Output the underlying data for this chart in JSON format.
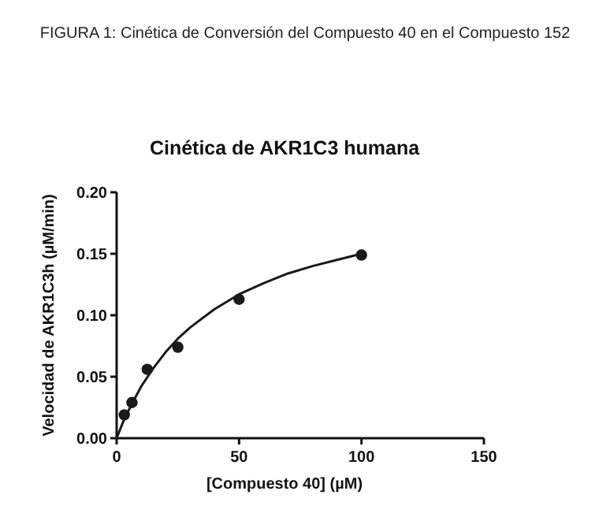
{
  "chart_data": {
    "type": "scatter",
    "title": "Cinética de AKR1C3 humana",
    "subtitle": "FIGURA 1: Cinética de Conversión del Compuesto 40 en el Compuesto 152",
    "xlabel": "[Compuesto 40] (µM)",
    "ylabel": "Velocidad de AKR1C3h  (µM/min)",
    "xlim": [
      0,
      150
    ],
    "xticks": [
      0,
      50,
      100,
      150
    ],
    "ylim": [
      0,
      0.2
    ],
    "yticks": [
      {
        "value": 0,
        "label": "0.00"
      },
      {
        "value": 0.05,
        "label": "0.05"
      },
      {
        "value": 0.1,
        "label": "0.10"
      },
      {
        "value": 0.15,
        "label": "0.15"
      },
      {
        "value": 0.2,
        "label": "0.20"
      }
    ],
    "grid": false,
    "series": [
      {
        "color": "#1a1a1a",
        "marker": "circle",
        "x": [
          3.125,
          6.25,
          12.5,
          25,
          50,
          100
        ],
        "values": [
          0.019,
          0.029,
          0.056,
          0.074,
          0.113,
          0.149
        ]
      },
      {
        "type": "line",
        "color": "#1a1a1a",
        "marker": "none",
        "line_style": "solid",
        "x": [
          0,
          3,
          6,
          10,
          15,
          20,
          25,
          30,
          40,
          50,
          60,
          70,
          80,
          90,
          100
        ],
        "values": [
          0,
          0.015,
          0.027,
          0.042,
          0.057,
          0.07,
          0.081,
          0.09,
          0.105,
          0.117,
          0.126,
          0.134,
          0.14,
          0.145,
          0.15
        ]
      }
    ]
  }
}
